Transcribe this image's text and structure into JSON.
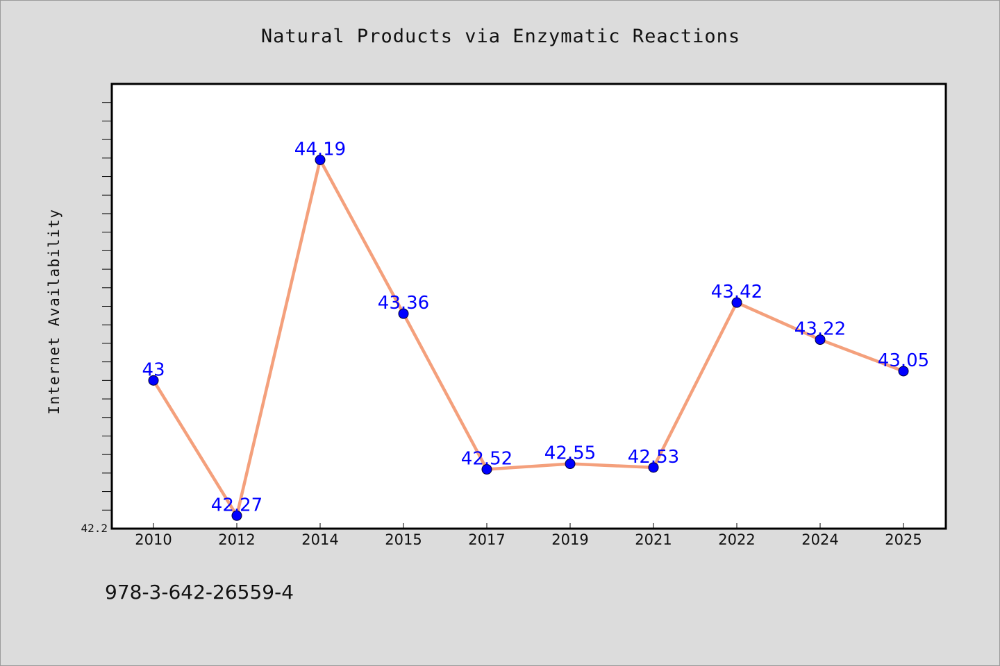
{
  "footer": {
    "isbn": "978-3-642-26559-4"
  },
  "colors": {
    "background": "#dcdcdc",
    "plot_background": "#ffffff",
    "line": "#f4a07c",
    "marker": "#0000ff",
    "data_label": "#0000ff",
    "axis": "#000000"
  },
  "chart_data": {
    "type": "line",
    "title": "Natural Products via Enzymatic Reactions",
    "xlabel": "",
    "ylabel": "Internet Availability",
    "categories": [
      "2010",
      "2012",
      "2014",
      "2015",
      "2017",
      "2019",
      "2021",
      "2022",
      "2024",
      "2025"
    ],
    "series": [
      {
        "values": [
          43,
          42.27,
          44.19,
          43.36,
          42.52,
          42.55,
          42.53,
          43.42,
          43.22,
          43.05
        ],
        "data_labels": [
          "43",
          "42.27",
          "44.19",
          "43.36",
          "42.52",
          "42.55",
          "42.53",
          "43.42",
          "43.22",
          "43.05"
        ]
      }
    ],
    "ylim": [
      42.2,
      44.6
    ],
    "yticks_labeled": [
      "42.2"
    ],
    "grid": false,
    "legend": "none"
  }
}
